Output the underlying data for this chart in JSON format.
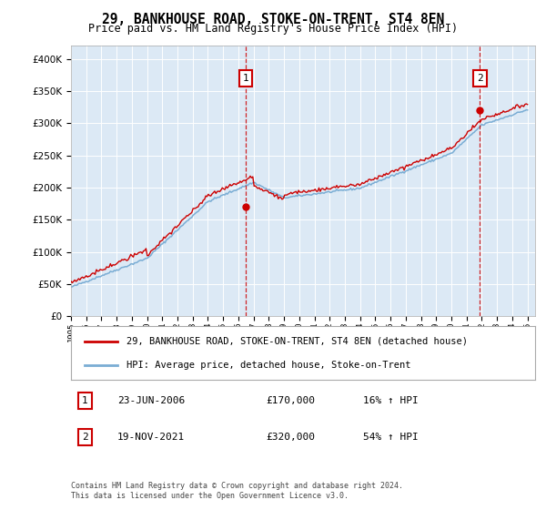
{
  "title": "29, BANKHOUSE ROAD, STOKE-ON-TRENT, ST4 8EN",
  "subtitle": "Price paid vs. HM Land Registry's House Price Index (HPI)",
  "house_label": "29, BANKHOUSE ROAD, STOKE-ON-TRENT, ST4 8EN (detached house)",
  "hpi_label": "HPI: Average price, detached house, Stoke-on-Trent",
  "house_color": "#cc0000",
  "hpi_color": "#7aadd4",
  "sale1_date": 2006.48,
  "sale1_price": 170000,
  "sale2_date": 2021.88,
  "sale2_price": 320000,
  "ylim": [
    0,
    420000
  ],
  "yticks": [
    0,
    50000,
    100000,
    150000,
    200000,
    250000,
    300000,
    350000,
    400000
  ],
  "plot_bg": "#dce9f5",
  "footnote": "Contains HM Land Registry data © Crown copyright and database right 2024.\nThis data is licensed under the Open Government Licence v3.0.",
  "xlim_start": 1995.0,
  "xlim_end": 2025.5
}
